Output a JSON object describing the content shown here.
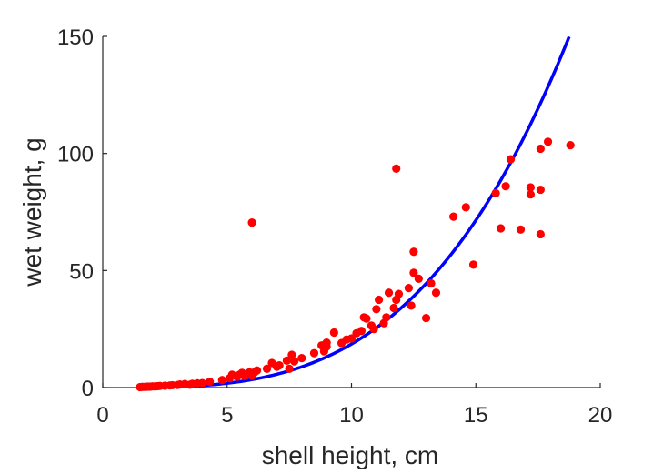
{
  "chart_data": {
    "type": "scatter",
    "title": "",
    "xlabel": "shell height, cm",
    "ylabel": "wet weight, g",
    "xlim": [
      0,
      20
    ],
    "ylim": [
      0,
      150
    ],
    "xticks": [
      0,
      5,
      10,
      15,
      20
    ],
    "yticks": [
      0,
      50,
      100,
      150
    ],
    "xtick_labels": [
      "0",
      "5",
      "10",
      "15",
      "20"
    ],
    "ytick_labels": [
      "0",
      "50",
      "100",
      "150"
    ],
    "grid": false,
    "legend": "none",
    "colors": {
      "points": "#ff0000",
      "fit": "#0000ff",
      "axes": "#262626"
    },
    "series": [
      {
        "kind": "scatter",
        "points": [
          [
            1.5,
            0.2
          ],
          [
            1.6,
            0.3
          ],
          [
            1.7,
            0.3
          ],
          [
            1.8,
            0.4
          ],
          [
            1.9,
            0.4
          ],
          [
            2.0,
            0.5
          ],
          [
            2.1,
            0.5
          ],
          [
            2.2,
            0.6
          ],
          [
            2.3,
            0.7
          ],
          [
            2.5,
            0.8
          ],
          [
            2.7,
            0.9
          ],
          [
            2.8,
            1.0
          ],
          [
            3.0,
            1.1
          ],
          [
            3.1,
            1.3
          ],
          [
            3.3,
            1.5
          ],
          [
            3.5,
            1.2
          ],
          [
            3.6,
            1.6
          ],
          [
            3.8,
            1.8
          ],
          [
            4.0,
            1.9
          ],
          [
            4.3,
            2.5
          ],
          [
            4.8,
            3.2
          ],
          [
            5.1,
            4.0
          ],
          [
            5.2,
            5.5
          ],
          [
            5.4,
            4.6
          ],
          [
            5.5,
            5.5
          ],
          [
            5.6,
            6.3
          ],
          [
            5.7,
            4.9
          ],
          [
            5.8,
            5.6
          ],
          [
            5.9,
            6.5
          ],
          [
            6.0,
            5.0
          ],
          [
            6.1,
            6.5
          ],
          [
            6.2,
            7.3
          ],
          [
            6.6,
            8.0
          ],
          [
            6.8,
            10.5
          ],
          [
            7.0,
            8.9
          ],
          [
            7.1,
            9.5
          ],
          [
            7.4,
            11.5
          ],
          [
            7.5,
            8.0
          ],
          [
            7.6,
            14.0
          ],
          [
            7.7,
            11.2
          ],
          [
            8.0,
            12.6
          ],
          [
            8.5,
            14.7
          ],
          [
            8.8,
            18.0
          ],
          [
            8.9,
            15.5
          ],
          [
            9.0,
            17.5
          ],
          [
            9.0,
            19.2
          ],
          [
            9.3,
            23.5
          ],
          [
            9.6,
            19.0
          ],
          [
            9.8,
            20.5
          ],
          [
            10.0,
            21.0
          ],
          [
            10.2,
            23.2
          ],
          [
            10.4,
            24.2
          ],
          [
            10.5,
            30.0
          ],
          [
            10.6,
            29.5
          ],
          [
            10.8,
            26.5
          ],
          [
            10.9,
            25.0
          ],
          [
            11.0,
            33.5
          ],
          [
            11.1,
            37.5
          ],
          [
            11.3,
            27.5
          ],
          [
            11.4,
            30.0
          ],
          [
            11.5,
            40.5
          ],
          [
            11.7,
            34.0
          ],
          [
            11.8,
            37.5
          ],
          [
            11.9,
            40.0
          ],
          [
            12.3,
            42.5
          ],
          [
            12.4,
            35.0
          ],
          [
            12.5,
            58.0
          ],
          [
            12.5,
            49.0
          ],
          [
            12.7,
            46.5
          ],
          [
            13.0,
            29.7
          ],
          [
            13.2,
            44.5
          ],
          [
            13.4,
            40.5
          ],
          [
            14.1,
            73.0
          ],
          [
            14.6,
            77.0
          ],
          [
            14.9,
            52.5
          ],
          [
            15.8,
            83.0
          ],
          [
            16.0,
            68.0
          ],
          [
            16.2,
            86.0
          ],
          [
            16.4,
            97.5
          ],
          [
            16.8,
            67.5
          ],
          [
            17.2,
            82.5
          ],
          [
            17.2,
            85.5
          ],
          [
            17.6,
            84.5
          ],
          [
            17.6,
            65.5
          ],
          [
            17.6,
            102.0
          ],
          [
            17.9,
            105.0
          ],
          [
            18.8,
            103.5
          ],
          [
            6.0,
            70.5
          ],
          [
            11.8,
            93.5
          ]
        ]
      },
      {
        "kind": "line",
        "model": "power",
        "a": 0.0089,
        "b": 3.32,
        "x_range": [
          1.5,
          18.75
        ]
      }
    ]
  }
}
